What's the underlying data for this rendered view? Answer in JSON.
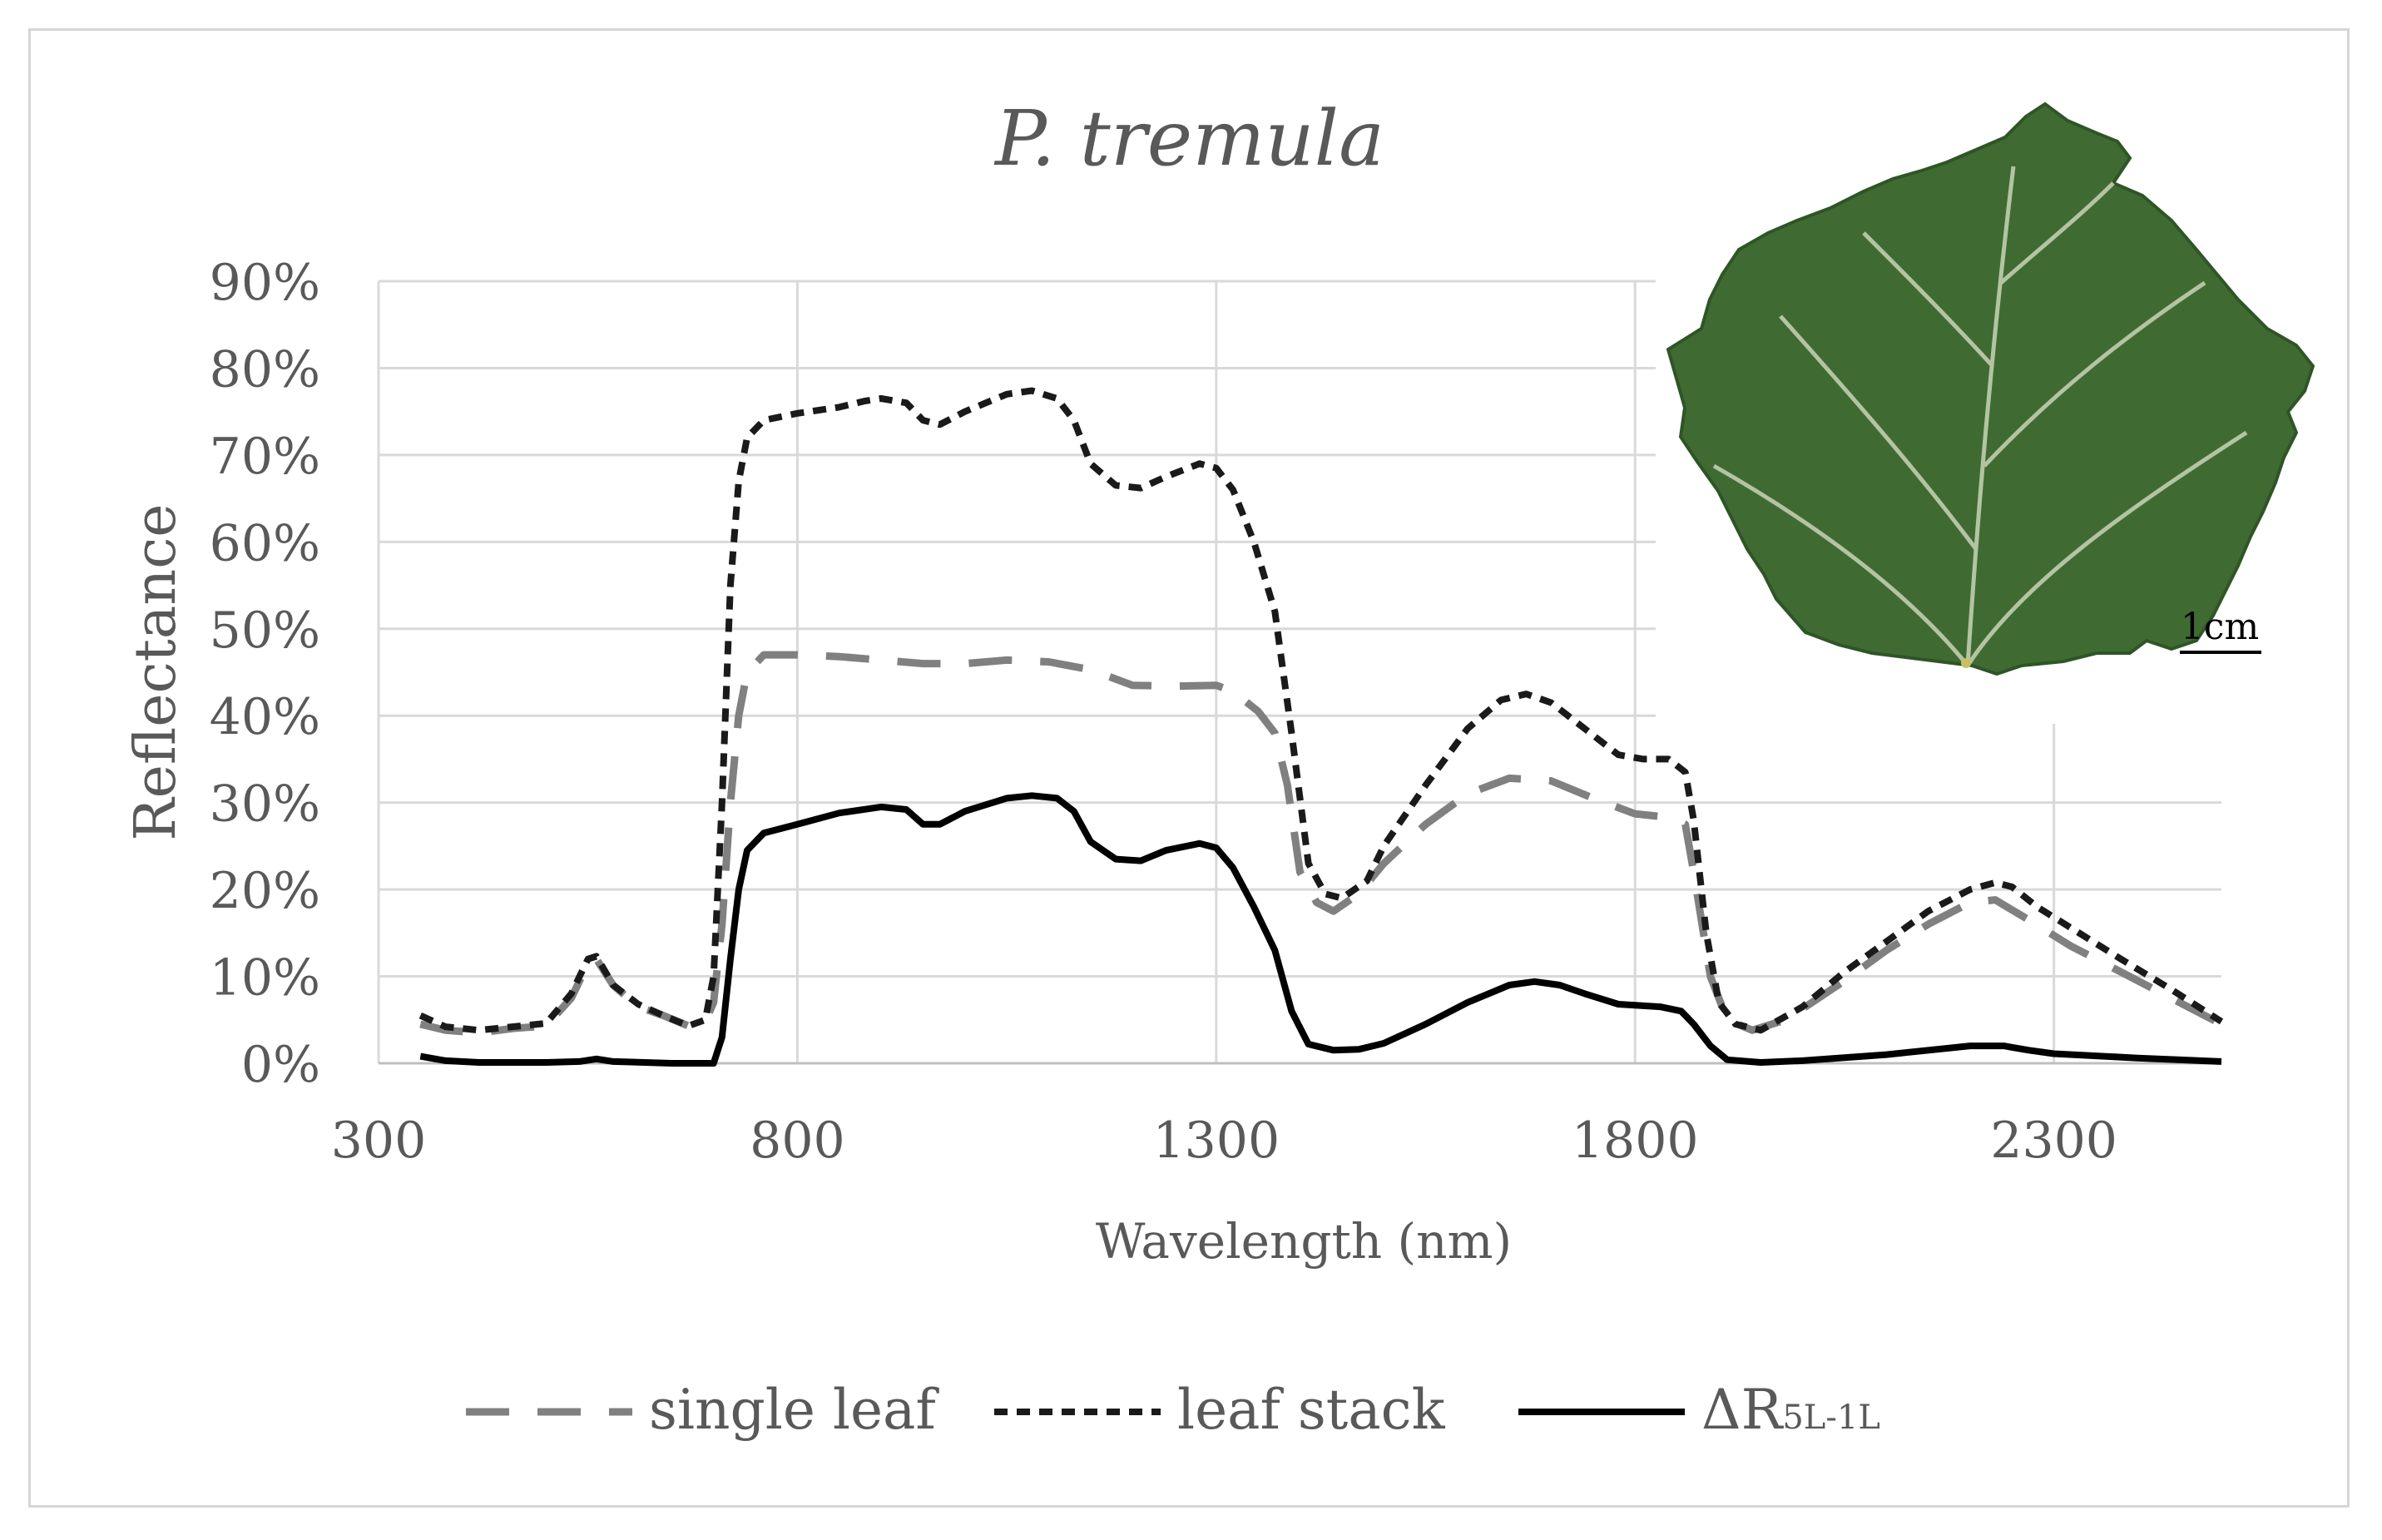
{
  "chart_data": {
    "type": "line",
    "title": "P. tremula",
    "xlabel": "Wavelength (nm)",
    "ylabel": "Reflectance",
    "xlim": [
      300,
      2500
    ],
    "ylim": [
      0,
      90
    ],
    "x_ticks": [
      300,
      800,
      1300,
      1800,
      2300
    ],
    "y_ticks": [
      0,
      10,
      20,
      30,
      40,
      50,
      60,
      70,
      80,
      90
    ],
    "y_tick_suffix": "%",
    "grid": true,
    "legend_position": "bottom",
    "inset_image": {
      "description": "photo of a poplar leaf",
      "scale_bar_label": "1cm"
    },
    "series": [
      {
        "name": "single leaf",
        "style": "long-dash",
        "color": "#808080",
        "points": [
          [
            350,
            4.5
          ],
          [
            380,
            3.8
          ],
          [
            420,
            3.5
          ],
          [
            460,
            4.0
          ],
          [
            500,
            4.3
          ],
          [
            530,
            7.5
          ],
          [
            550,
            11.5
          ],
          [
            560,
            12.0
          ],
          [
            580,
            9.0
          ],
          [
            610,
            6.5
          ],
          [
            640,
            5.5
          ],
          [
            670,
            4.3
          ],
          [
            690,
            4.8
          ],
          [
            700,
            7.0
          ],
          [
            710,
            16.0
          ],
          [
            720,
            30.0
          ],
          [
            730,
            40.0
          ],
          [
            740,
            45.0
          ],
          [
            760,
            47.0
          ],
          [
            800,
            47.0
          ],
          [
            850,
            46.8
          ],
          [
            900,
            46.4
          ],
          [
            950,
            46.0
          ],
          [
            1000,
            46.0
          ],
          [
            1050,
            46.4
          ],
          [
            1100,
            46.2
          ],
          [
            1150,
            45.3
          ],
          [
            1200,
            43.5
          ],
          [
            1250,
            43.4
          ],
          [
            1300,
            43.5
          ],
          [
            1320,
            42.8
          ],
          [
            1350,
            40.5
          ],
          [
            1370,
            38.0
          ],
          [
            1385,
            32.0
          ],
          [
            1400,
            22.0
          ],
          [
            1420,
            18.5
          ],
          [
            1440,
            17.5
          ],
          [
            1470,
            19.5
          ],
          [
            1500,
            23.0
          ],
          [
            1550,
            27.5
          ],
          [
            1600,
            31.0
          ],
          [
            1650,
            32.8
          ],
          [
            1700,
            32.5
          ],
          [
            1750,
            30.5
          ],
          [
            1800,
            28.7
          ],
          [
            1840,
            28.3
          ],
          [
            1860,
            27.5
          ],
          [
            1870,
            22.0
          ],
          [
            1890,
            10.0
          ],
          [
            1910,
            5.0
          ],
          [
            1940,
            3.8
          ],
          [
            1980,
            5.0
          ],
          [
            2050,
            9.5
          ],
          [
            2100,
            13.0
          ],
          [
            2150,
            16.0
          ],
          [
            2200,
            18.5
          ],
          [
            2230,
            18.8
          ],
          [
            2270,
            16.5
          ],
          [
            2320,
            13.5
          ],
          [
            2380,
            10.5
          ],
          [
            2440,
            7.5
          ],
          [
            2500,
            4.5
          ]
        ]
      },
      {
        "name": "leaf stack",
        "style": "short-dash",
        "color": "#1a1a1a",
        "points": [
          [
            350,
            5.5
          ],
          [
            380,
            4.2
          ],
          [
            420,
            3.8
          ],
          [
            460,
            4.2
          ],
          [
            500,
            4.6
          ],
          [
            530,
            8.0
          ],
          [
            550,
            12.0
          ],
          [
            560,
            12.3
          ],
          [
            580,
            9.0
          ],
          [
            610,
            6.8
          ],
          [
            640,
            5.5
          ],
          [
            670,
            4.3
          ],
          [
            690,
            5.0
          ],
          [
            700,
            10.0
          ],
          [
            710,
            30.0
          ],
          [
            720,
            55.0
          ],
          [
            730,
            67.0
          ],
          [
            740,
            72.0
          ],
          [
            760,
            74.0
          ],
          [
            800,
            74.8
          ],
          [
            850,
            75.5
          ],
          [
            880,
            76.2
          ],
          [
            900,
            76.5
          ],
          [
            930,
            76.0
          ],
          [
            950,
            74.0
          ],
          [
            970,
            73.5
          ],
          [
            1000,
            75.0
          ],
          [
            1050,
            77.0
          ],
          [
            1080,
            77.4
          ],
          [
            1110,
            76.5
          ],
          [
            1130,
            74.0
          ],
          [
            1150,
            69.0
          ],
          [
            1180,
            66.5
          ],
          [
            1210,
            66.2
          ],
          [
            1240,
            67.5
          ],
          [
            1280,
            69.0
          ],
          [
            1300,
            68.5
          ],
          [
            1320,
            66.0
          ],
          [
            1345,
            60.0
          ],
          [
            1370,
            52.0
          ],
          [
            1390,
            38.0
          ],
          [
            1410,
            23.0
          ],
          [
            1430,
            19.5
          ],
          [
            1450,
            19.0
          ],
          [
            1480,
            21.0
          ],
          [
            1500,
            25.0
          ],
          [
            1550,
            32.0
          ],
          [
            1600,
            38.5
          ],
          [
            1640,
            41.8
          ],
          [
            1670,
            42.5
          ],
          [
            1700,
            41.5
          ],
          [
            1740,
            38.5
          ],
          [
            1780,
            35.5
          ],
          [
            1810,
            35.0
          ],
          [
            1840,
            35.0
          ],
          [
            1860,
            33.5
          ],
          [
            1870,
            28.0
          ],
          [
            1885,
            15.0
          ],
          [
            1900,
            7.0
          ],
          [
            1920,
            4.5
          ],
          [
            1950,
            3.8
          ],
          [
            2000,
            6.5
          ],
          [
            2050,
            10.5
          ],
          [
            2100,
            14.0
          ],
          [
            2150,
            17.5
          ],
          [
            2200,
            20.0
          ],
          [
            2230,
            20.8
          ],
          [
            2250,
            20.3
          ],
          [
            2280,
            18.0
          ],
          [
            2330,
            15.0
          ],
          [
            2380,
            12.0
          ],
          [
            2440,
            8.5
          ],
          [
            2500,
            4.8
          ]
        ]
      },
      {
        "name": "ΔR",
        "name_subscript": "5L-1L",
        "style": "solid",
        "color": "#000000",
        "points": [
          [
            350,
            0.8
          ],
          [
            380,
            0.3
          ],
          [
            420,
            0.1
          ],
          [
            500,
            0.1
          ],
          [
            540,
            0.2
          ],
          [
            560,
            0.5
          ],
          [
            580,
            0.2
          ],
          [
            650,
            0.0
          ],
          [
            700,
            0.0
          ],
          [
            710,
            3.0
          ],
          [
            720,
            12.0
          ],
          [
            730,
            20.0
          ],
          [
            740,
            24.5
          ],
          [
            760,
            26.5
          ],
          [
            800,
            27.5
          ],
          [
            850,
            28.8
          ],
          [
            900,
            29.5
          ],
          [
            930,
            29.2
          ],
          [
            950,
            27.5
          ],
          [
            970,
            27.5
          ],
          [
            1000,
            29.0
          ],
          [
            1050,
            30.5
          ],
          [
            1080,
            30.8
          ],
          [
            1110,
            30.5
          ],
          [
            1130,
            29.0
          ],
          [
            1150,
            25.5
          ],
          [
            1180,
            23.5
          ],
          [
            1210,
            23.3
          ],
          [
            1240,
            24.5
          ],
          [
            1280,
            25.3
          ],
          [
            1300,
            24.8
          ],
          [
            1320,
            22.5
          ],
          [
            1345,
            18.0
          ],
          [
            1370,
            13.0
          ],
          [
            1390,
            6.0
          ],
          [
            1410,
            2.2
          ],
          [
            1440,
            1.5
          ],
          [
            1470,
            1.6
          ],
          [
            1500,
            2.3
          ],
          [
            1550,
            4.5
          ],
          [
            1600,
            7.0
          ],
          [
            1650,
            9.0
          ],
          [
            1680,
            9.4
          ],
          [
            1710,
            9.0
          ],
          [
            1740,
            8.0
          ],
          [
            1780,
            6.8
          ],
          [
            1830,
            6.5
          ],
          [
            1855,
            6.0
          ],
          [
            1870,
            4.5
          ],
          [
            1890,
            2.0
          ],
          [
            1910,
            0.4
          ],
          [
            1950,
            0.1
          ],
          [
            2000,
            0.3
          ],
          [
            2100,
            1.0
          ],
          [
            2200,
            2.0
          ],
          [
            2240,
            2.0
          ],
          [
            2270,
            1.5
          ],
          [
            2300,
            1.1
          ],
          [
            2400,
            0.6
          ],
          [
            2500,
            0.2
          ]
        ]
      }
    ]
  }
}
